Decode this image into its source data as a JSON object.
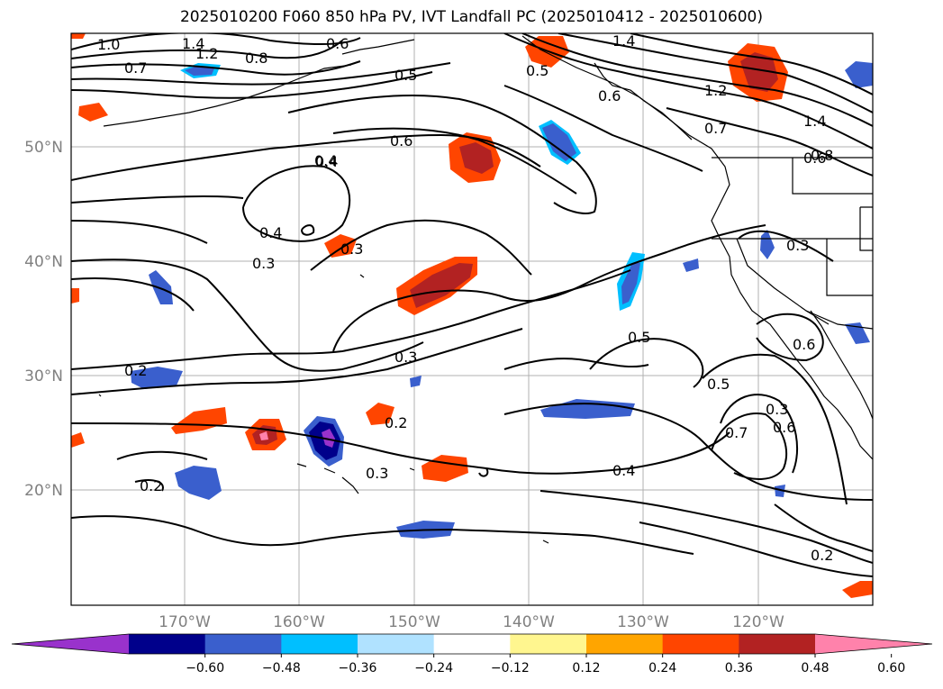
{
  "title": "2025010200 F060 850 hPa PV, IVT Landfall PC (2025010412 - 2025010600)",
  "map": {
    "lon_ticks": [
      "170°W",
      "160°W",
      "150°W",
      "140°W",
      "130°W",
      "120°W"
    ],
    "lat_ticks": [
      "50°N",
      "40°N",
      "30°N",
      "20°N"
    ],
    "gridlines": true,
    "contour_labels": [
      "1.0",
      "1.4",
      "1.2",
      "0.8",
      "0.6",
      "1.4",
      "0.7",
      "0.5",
      "0.5",
      "0.6",
      "1.2",
      "0.7",
      "1.4",
      "0.6",
      "0.6",
      "0.4",
      "0.4",
      "0.3",
      "0.3",
      "0.3",
      "0.3",
      "0.2",
      "0.5",
      "0.5",
      "0.6",
      "0.3",
      "0.2",
      "0.3",
      "0.4",
      "0.7",
      "0.6",
      "0.2",
      "0.2",
      "0.8",
      "0.4"
    ]
  },
  "colorbar": {
    "tick_labels": [
      "−0.60",
      "−0.48",
      "−0.36",
      "−0.24",
      "−0.12",
      "0.12",
      "0.24",
      "0.36",
      "0.48",
      "0.60"
    ],
    "colors": [
      "#9932cc",
      "#00008b",
      "#3a5fcd",
      "#00bfff",
      "#b0e2ff",
      "#ffffff",
      "#fff68f",
      "#ffa500",
      "#ff4500",
      "#b22222",
      "#ff82ab"
    ],
    "extend": "both"
  }
}
